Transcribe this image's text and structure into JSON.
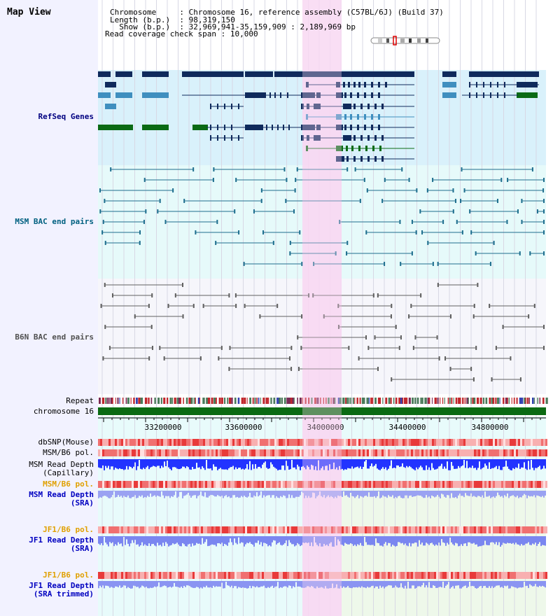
{
  "title": "Map View",
  "info": [
    {
      "key": "Chromosome     ",
      "value": "Chromosome 16, reference assembly (C57BL/6J) (Build 37)"
    },
    {
      "key": "Length (b.p.)  ",
      "value": "98,319,150"
    },
    {
      "key": "  Show (b.p.)  ",
      "value": "32,969,941-35,159,909 : 2,189,969 bp"
    },
    {
      "key": "Read coverage check span",
      "value": "10,000"
    }
  ],
  "track_labels": {
    "refseq": "RefSeq Genes",
    "msm_bac": "MSM BAC end pairs",
    "b6n_bac": "B6N BAC end pairs",
    "repeat": "Repeat",
    "chromosome": "chromosome 16",
    "dbsnp": "dbSNP(Mouse)",
    "msm_b6_pol_1": "MSM/B6 pol.",
    "msm_depth_cap": "MSM Read Depth\n(Capillary)",
    "msm_b6_pol_2": "MSM/B6 pol.",
    "msm_depth_sra": "MSM Read Depth\n(SRA)",
    "jf1_b6_pol_1": "JF1/B6 pol.",
    "jf1_depth_sra": "JF1 Read Depth\n(SRA)",
    "jf1_b6_pol_2": "JF1/B6 pol.",
    "jf1_depth_trim": "JF1 Read Depth\n(SRA trimmed)"
  },
  "axis": {
    "ticks": [
      "33200000",
      "33600000",
      "34000000",
      "34400000",
      "34800000"
    ]
  },
  "colors": {
    "refseq_bg": "#d9f1fb",
    "msm_bg": "#e6fafa",
    "b6n_bg": "#f6f6fb",
    "highlight": "#f8d8f2",
    "refseq_dark": "#0f2a5c",
    "refseq_mid": "#3f8fbf",
    "refseq_green": "#0a6a14",
    "msm_line": "#1f6f8f",
    "b6n_line": "#606060",
    "chrom_green": "#0b6a12",
    "pol_red": "#f05050",
    "depth_blue": "#2233ff",
    "depth_light": "#7a86f0",
    "label_navy": "#000080",
    "label_teal": "#006080",
    "label_gray": "#505050",
    "label_orange": "#e0a000"
  }
}
